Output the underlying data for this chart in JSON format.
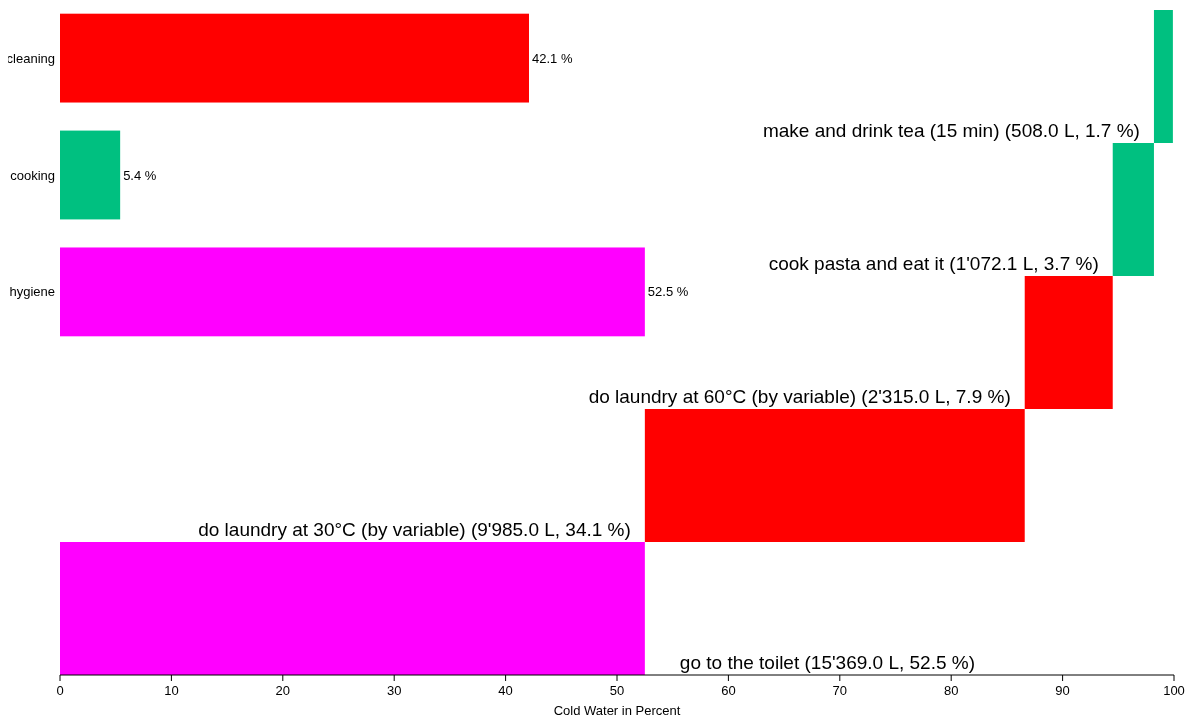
{
  "chart_data": [
    {
      "type": "bar",
      "orientation": "horizontal",
      "categories": [
        "cleaning",
        "cooking",
        "hygiene"
      ],
      "values": [
        42.1,
        5.4,
        52.5
      ],
      "colors": [
        "#ff0000",
        "#00c080",
        "#ff00ff"
      ],
      "value_labels": [
        "42.1 %",
        "5.4 %",
        "52.5 %"
      ],
      "xlim": [
        0,
        100
      ],
      "tick_labels": "y"
    },
    {
      "type": "bar",
      "orientation": "horizontal",
      "categories": [
        "make and drink tea (15 min) (508.0 L, 1.7 %)",
        "cook pasta and eat it (1'072.1 L, 3.7 %)",
        "do laundry at 60°C (by variable) (2'315.0 L, 7.9 %)",
        "do laundry at 30°C (by variable) (9'985.0 L, 34.1 %)",
        "go to the toilet (15'369.0 L, 52.5 %)"
      ],
      "values": [
        1.7,
        3.7,
        7.9,
        34.1,
        52.5
      ],
      "base": [
        98.2,
        94.5,
        86.6,
        52.5,
        0
      ],
      "colors": [
        "#00c080",
        "#00c080",
        "#ff0000",
        "#ff0000",
        "#ff00ff"
      ],
      "xlim": [
        0,
        100
      ],
      "xticks": [
        0,
        10,
        20,
        30,
        40,
        50,
        60,
        70,
        80,
        90,
        100
      ],
      "xlabel": "Cold Water in Percent"
    }
  ]
}
